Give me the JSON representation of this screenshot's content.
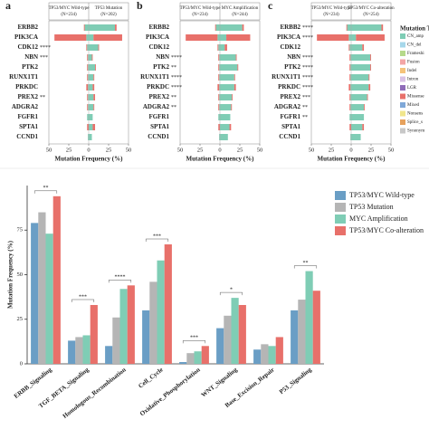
{
  "chart_data": [
    {
      "type": "butterfly",
      "label": "a",
      "genes": [
        "ERBB2",
        "PIK3CA",
        "CDK12",
        "NBN",
        "PTK2",
        "RUNX1T1",
        "PRKDC",
        "PREX2",
        "ADGRA2",
        "FGFR1",
        "SPTA1",
        "CCND1"
      ],
      "significance": [
        null,
        null,
        "****",
        "***",
        null,
        null,
        null,
        "**",
        null,
        null,
        null,
        null
      ],
      "xlabel": "Mutation Frequency (%)",
      "left": {
        "title": "TP53/MYC Wild-type",
        "n": "(N=234)",
        "xlim": [
          0,
          50
        ],
        "xticks": [
          50,
          25
        ],
        "series": [
          {
            "name": "CN_amp",
            "color": "#7fcdb5",
            "values": [
              5,
              3,
              2,
              1,
              1,
              1,
              1,
              1,
              1,
              2,
              0,
              1
            ]
          },
          {
            "name": "Missense",
            "color": "#e8706a",
            "values": [
              1,
              40,
              1,
              1,
              1,
              1,
              2,
              1,
              1,
              0,
              2,
              0
            ]
          }
        ]
      },
      "right": {
        "title": "TP53 Mutation",
        "n": "(N=202)",
        "xlim": [
          0,
          50
        ],
        "xticks": [
          0,
          25,
          50
        ],
        "series": [
          {
            "name": "CN_amp",
            "color": "#7fcdb5",
            "values": [
              33,
              6,
              12,
              4,
              8,
              6,
              5,
              6,
              6,
              5,
              5,
              4
            ]
          },
          {
            "name": "Missense",
            "color": "#e8706a",
            "values": [
              2,
              36,
              1,
              1,
              1,
              1,
              2,
              2,
              1,
              0,
              3,
              0
            ]
          }
        ]
      }
    },
    {
      "type": "butterfly",
      "label": "b",
      "genes": [
        "ERBB2",
        "PIK3CA",
        "CDK12",
        "NBN",
        "PTK2",
        "RUNX1T1",
        "PRKDC",
        "PREX2",
        "ADGRA2",
        "FGFR1",
        "SPTA1",
        "CCND1"
      ],
      "significance": [
        null,
        null,
        null,
        "****",
        "**",
        "****",
        "****",
        "**",
        "**",
        null,
        null,
        null
      ],
      "xlabel": "Mutation Frequency (%)",
      "left": {
        "title": "TP53/MYC Wild-type",
        "n": "(N=234)",
        "xlim": [
          0,
          50
        ],
        "xticks": [
          50,
          25
        ],
        "series": [
          {
            "name": "CN_amp",
            "color": "#7fcdb5",
            "values": [
              5,
              3,
              2,
              1,
              1,
              1,
              1,
              1,
              1,
              2,
              0,
              1
            ]
          },
          {
            "name": "Missense",
            "color": "#e8706a",
            "values": [
              1,
              40,
              1,
              1,
              1,
              1,
              2,
              1,
              1,
              0,
              2,
              0
            ]
          }
        ]
      },
      "right": {
        "title": "MYC Amplification",
        "n": "(N=244)",
        "xlim": [
          0,
          50
        ],
        "xticks": [
          0,
          25,
          50
        ],
        "series": [
          {
            "name": "CN_amp",
            "color": "#7fcdb5",
            "values": [
              28,
              8,
              6,
              20,
              22,
              18,
              18,
              15,
              14,
              13,
              12,
              10
            ]
          },
          {
            "name": "Missense",
            "color": "#e8706a",
            "values": [
              2,
              30,
              3,
              1,
              1,
              1,
              2,
              1,
              1,
              0,
              2,
              0
            ]
          }
        ]
      }
    },
    {
      "type": "butterfly",
      "label": "c",
      "genes": [
        "ERBB2",
        "PIK3CA",
        "CDK12",
        "NBN",
        "PTK2",
        "RUNX1T1",
        "PRKDC",
        "PREX2",
        "ADGRA2",
        "FGFR1",
        "SPTA1",
        "CCND1"
      ],
      "significance": [
        "****",
        "****",
        null,
        "****",
        "****",
        "****",
        "****",
        "***",
        "**",
        "**",
        null,
        null
      ],
      "xlabel": "Mutation Frequency (%)",
      "left": {
        "title": "TP53/MYC Wild-type",
        "n": "(N=234)",
        "xlim": [
          0,
          50
        ],
        "xticks": [
          50,
          25
        ],
        "series": [
          {
            "name": "CN_amp",
            "color": "#7fcdb5",
            "values": [
              5,
              3,
              2,
              1,
              1,
              1,
              1,
              1,
              1,
              2,
              0,
              1
            ]
          },
          {
            "name": "Missense",
            "color": "#e8706a",
            "values": [
              1,
              40,
              1,
              1,
              1,
              1,
              2,
              1,
              1,
              0,
              2,
              0
            ]
          }
        ]
      },
      "right": {
        "title": "TP53/MYC Co-alteration",
        "n": "(N=254)",
        "xlim": [
          0,
          50
        ],
        "xticks": [
          0,
          25,
          50
        ],
        "series": [
          {
            "name": "CN_amp",
            "color": "#7fcdb5",
            "values": [
              38,
              6,
              14,
              24,
              24,
              22,
              22,
              20,
              16,
              16,
              14,
              12
            ]
          },
          {
            "name": "Missense",
            "color": "#e8706a",
            "values": [
              2,
              36,
              2,
              1,
              1,
              1,
              2,
              1,
              1,
              0,
              2,
              0
            ]
          }
        ]
      },
      "legend": {
        "title": "Mutation Ty",
        "items": [
          {
            "name": "CN_amp",
            "color": "#7fcdb5"
          },
          {
            "name": "CN_del",
            "color": "#a6d7ea"
          },
          {
            "name": "Frameshi",
            "color": "#b6d98a"
          },
          {
            "name": "Fusion",
            "color": "#f3a5a5"
          },
          {
            "name": "Indel",
            "color": "#f5c37a"
          },
          {
            "name": "Intron",
            "color": "#d9c2e6"
          },
          {
            "name": "LGR",
            "color": "#8f6bb8"
          },
          {
            "name": "Missense",
            "color": "#e8706a"
          },
          {
            "name": "Mixed",
            "color": "#7fa8d8"
          },
          {
            "name": "Nonsens",
            "color": "#f0e68c"
          },
          {
            "name": "Splice_s",
            "color": "#e6a15c"
          },
          {
            "name": "Synonym",
            "color": "#c8c8c8"
          }
        ]
      }
    },
    {
      "type": "grouped_bar",
      "ylabel": "Mutation Frequency (%)",
      "categories": [
        "ERBB_Signaling",
        "TGF_BETA_Signaling",
        "Homologous_Recombination",
        "Cell_Cycle",
        "Oxidative_Phosphorylation",
        "WNT_Signaling",
        "Base_Excision_Repair",
        "P53_Signaling"
      ],
      "significance": [
        "**",
        "***",
        "****",
        "***",
        "***",
        "*",
        null,
        "**"
      ],
      "ylim": [
        0,
        100
      ],
      "yticks": [
        0,
        25,
        50,
        75
      ],
      "series": [
        {
          "name": "TP53/MYC Wild-type",
          "color": "#6a9ec5",
          "values": [
            79,
            13,
            10,
            30,
            1,
            20,
            8,
            30
          ]
        },
        {
          "name": "TP53 Mutation",
          "color": "#b5b5b5",
          "values": [
            85,
            15,
            26,
            46,
            6,
            27,
            11,
            36
          ]
        },
        {
          "name": "MYC Amplification",
          "color": "#7fcdb5",
          "values": [
            73,
            16,
            42,
            58,
            7,
            37,
            10,
            52
          ]
        },
        {
          "name": "TP53/MYC Co-alteration",
          "color": "#e8706a",
          "values": [
            94,
            33,
            44,
            67,
            10,
            33,
            15,
            41
          ]
        }
      ]
    }
  ]
}
